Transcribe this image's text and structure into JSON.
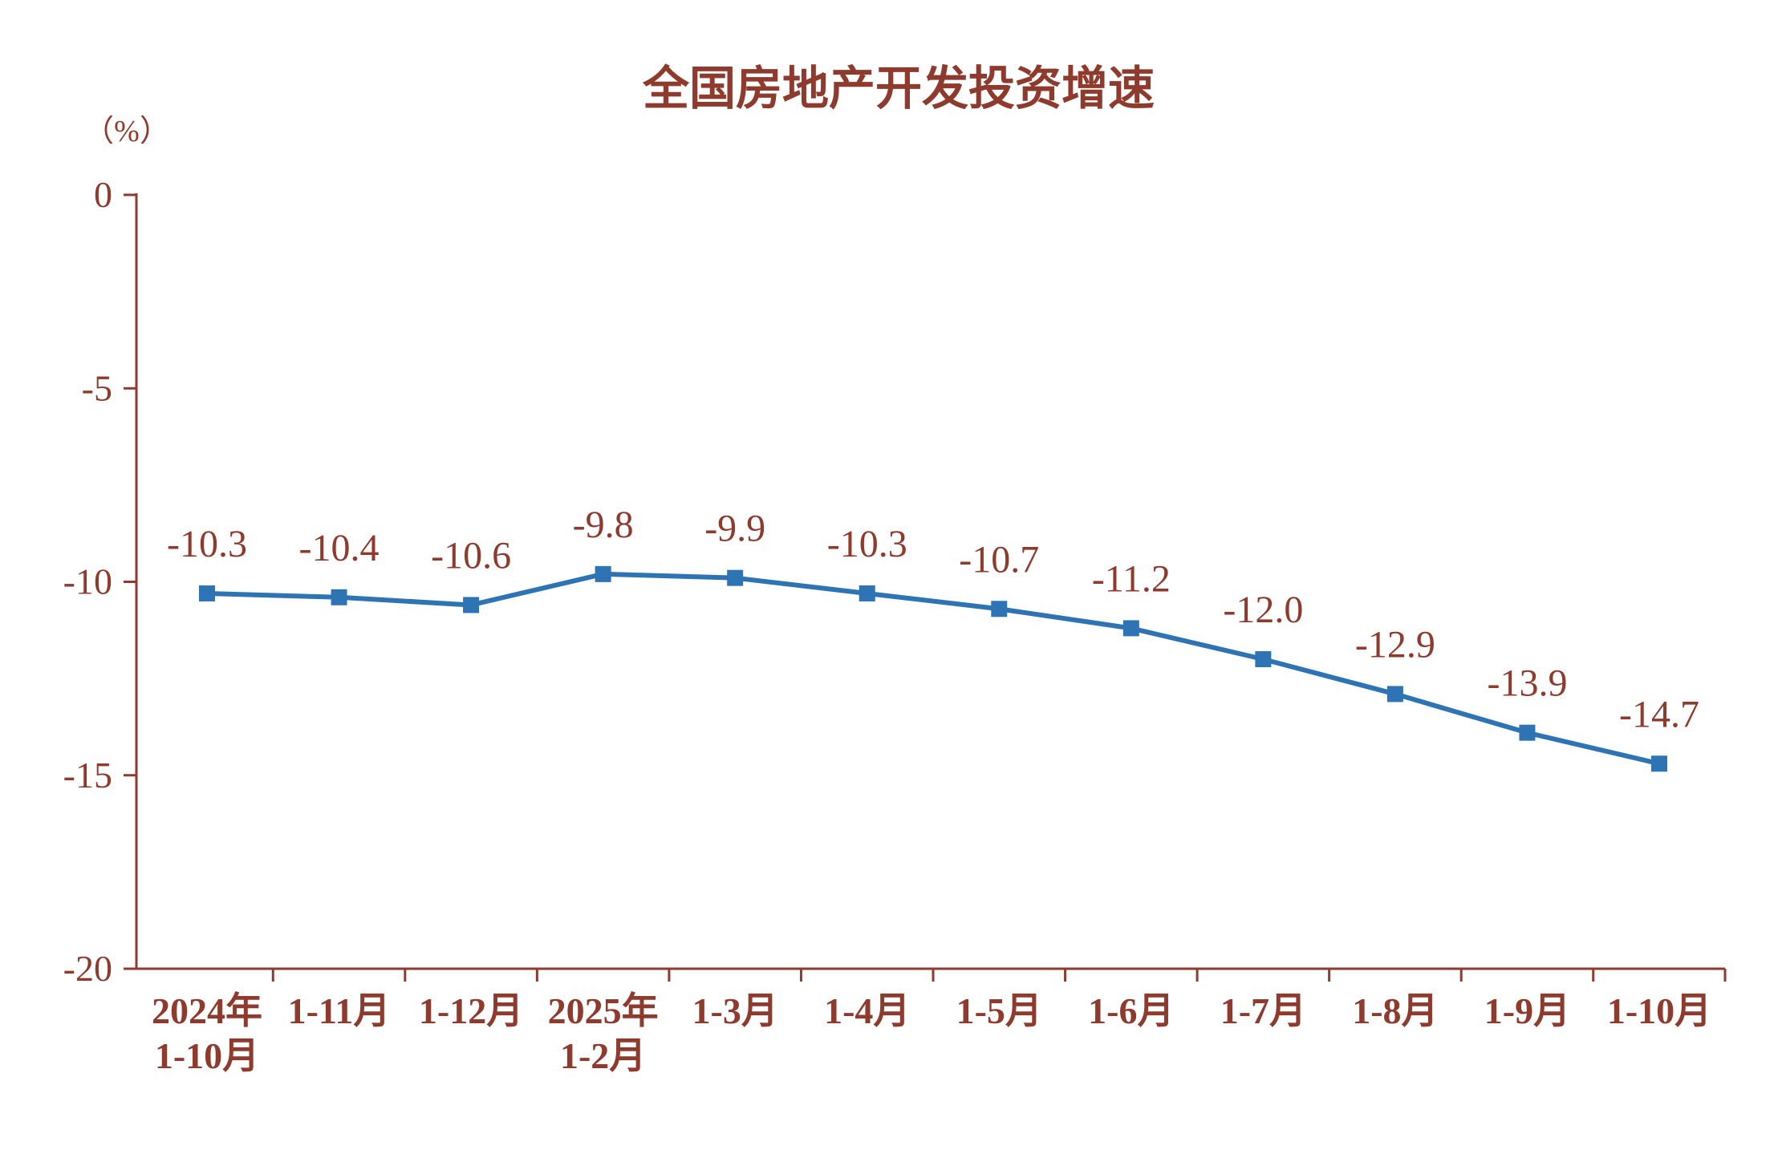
{
  "chart_data": {
    "type": "line",
    "title": "全国房地产开发投资增速",
    "unit_label": "（%）",
    "categories": [
      [
        "2024年",
        "1-10月"
      ],
      [
        "1-11月"
      ],
      [
        "1-12月"
      ],
      [
        "2025年",
        "1-2月"
      ],
      [
        "1-3月"
      ],
      [
        "1-4月"
      ],
      [
        "1-5月"
      ],
      [
        "1-6月"
      ],
      [
        "1-7月"
      ],
      [
        "1-8月"
      ],
      [
        "1-9月"
      ],
      [
        "1-10月"
      ]
    ],
    "values": [
      -10.3,
      -10.4,
      -10.6,
      -9.8,
      -9.9,
      -10.3,
      -10.7,
      -11.2,
      -12.0,
      -12.9,
      -13.9,
      -14.7
    ],
    "data_labels": [
      "-10.3",
      "-10.4",
      "-10.6",
      "-9.8",
      "-9.9",
      "-10.3",
      "-10.7",
      "-11.2",
      "-12.0",
      "-12.9",
      "-13.9",
      "-14.7"
    ],
    "ylim": [
      -20,
      0
    ],
    "yticks": [
      0,
      -5,
      -10,
      -15,
      -20
    ],
    "ytick_labels": [
      "0",
      "-5",
      "-10",
      "-15",
      "-20"
    ],
    "xlabel": "",
    "ylabel": "",
    "grid": false,
    "legend": "none",
    "colors": {
      "line": "#2E74B5",
      "marker": "#2E74B5",
      "text": "#8E3B2E",
      "axis": "#8E3B2E",
      "background": "#FFFFFF"
    }
  }
}
